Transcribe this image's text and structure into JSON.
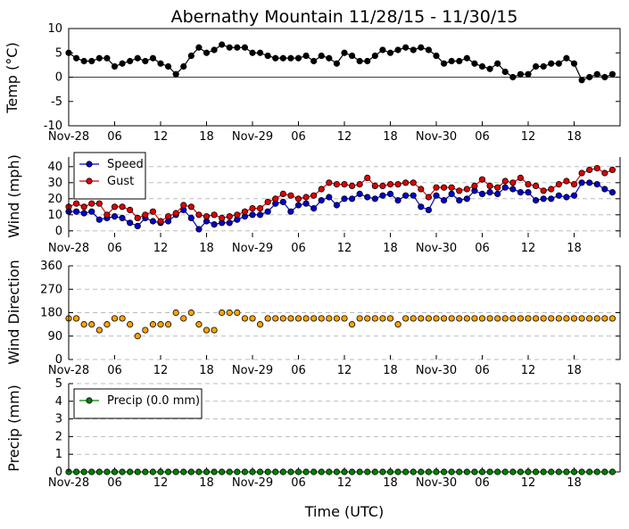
{
  "figure": {
    "title": "Abernathy Mountain 11/28/15 - 11/30/15",
    "xlabel": "Time (UTC)",
    "x_tick_labels": [
      "Nov-28",
      "06",
      "12",
      "18",
      "Nov-29",
      "06",
      "12",
      "18",
      "Nov-30",
      "06",
      "12",
      "18"
    ]
  },
  "chart_data": [
    {
      "type": "line",
      "name": "temperature",
      "ylabel": "Temp (°C)",
      "ylim": [
        -10,
        10
      ],
      "yticks": [
        -10,
        -5,
        0,
        5,
        10
      ],
      "xlim": [
        0,
        72
      ],
      "grid": false,
      "zero_line": true,
      "series": [
        {
          "color": "#000000",
          "x": [
            0,
            1,
            2,
            3,
            4,
            5,
            6,
            7,
            8,
            9,
            10,
            11,
            12,
            13,
            14,
            15,
            16,
            17,
            18,
            19,
            20,
            21,
            22,
            23,
            24,
            25,
            26,
            27,
            28,
            29,
            30,
            31,
            32,
            33,
            34,
            35,
            36,
            37,
            38,
            39,
            40,
            41,
            42,
            43,
            44,
            45,
            46,
            47,
            48,
            49,
            50,
            51,
            52,
            53,
            54,
            55,
            56,
            57,
            58,
            59,
            60,
            61,
            62,
            63,
            64,
            65,
            66,
            67,
            68,
            69,
            70,
            71
          ],
          "y": [
            5,
            3.9,
            3.3,
            3.3,
            3.9,
            3.9,
            2.2,
            2.8,
            3.3,
            3.9,
            3.3,
            3.9,
            2.8,
            2.2,
            0.6,
            2.2,
            4.4,
            6.1,
            5,
            5.6,
            6.7,
            6.1,
            6.1,
            6.1,
            5,
            5,
            4.4,
            3.9,
            3.9,
            3.9,
            3.9,
            4.4,
            3.3,
            4.4,
            3.9,
            2.8,
            5,
            4.4,
            3.3,
            3.3,
            4.4,
            5.6,
            5,
            5.6,
            6.1,
            5.6,
            6.1,
            5.6,
            4.4,
            2.8,
            3.3,
            3.3,
            3.9,
            2.8,
            2.2,
            1.7,
            2.8,
            1.1,
            0,
            0.6,
            0.6,
            2.2,
            2.2,
            2.8,
            2.8,
            3.9,
            2.8,
            -0.6,
            0,
            0.6,
            0,
            0.6
          ]
        }
      ]
    },
    {
      "type": "line",
      "name": "wind",
      "ylabel": "Wind (mph)",
      "ylim": [
        -4,
        46
      ],
      "yticks": [
        0,
        10,
        20,
        30,
        40
      ],
      "xlim": [
        0,
        72
      ],
      "grid": true,
      "legend": "top-left",
      "series": [
        {
          "name": "Speed",
          "color": "#0000cc",
          "x": [
            0,
            1,
            2,
            3,
            4,
            5,
            6,
            7,
            8,
            9,
            10,
            11,
            12,
            13,
            14,
            15,
            16,
            17,
            18,
            19,
            20,
            21,
            22,
            23,
            24,
            25,
            26,
            27,
            28,
            29,
            30,
            31,
            32,
            33,
            34,
            35,
            36,
            37,
            38,
            39,
            40,
            41,
            42,
            43,
            44,
            45,
            46,
            47,
            48,
            49,
            50,
            51,
            52,
            53,
            54,
            55,
            56,
            57,
            58,
            59,
            60,
            61,
            62,
            63,
            64,
            65,
            66,
            67,
            68,
            69,
            70,
            71
          ],
          "y": [
            12,
            12,
            11,
            12,
            7,
            8,
            9,
            8,
            5,
            3,
            8,
            6,
            5,
            6,
            10,
            13,
            8,
            1,
            6,
            4,
            5,
            5,
            7,
            9,
            10,
            10,
            12,
            17,
            18,
            12,
            16,
            17,
            14,
            19,
            21,
            16,
            20,
            20,
            23,
            21,
            20,
            22,
            23,
            19,
            22,
            22,
            15,
            13,
            22,
            19,
            23,
            19,
            20,
            25,
            23,
            24,
            23,
            27,
            26,
            24,
            24,
            19,
            20,
            20,
            22,
            21,
            22,
            30,
            30,
            29,
            26,
            24
          ]
        },
        {
          "name": "Gust",
          "color": "#dd0000",
          "x": [
            0,
            1,
            2,
            3,
            4,
            5,
            6,
            7,
            8,
            9,
            10,
            11,
            12,
            13,
            14,
            15,
            16,
            17,
            18,
            19,
            20,
            21,
            22,
            23,
            24,
            25,
            26,
            27,
            28,
            29,
            30,
            31,
            32,
            33,
            34,
            35,
            36,
            37,
            38,
            39,
            40,
            41,
            42,
            43,
            44,
            45,
            46,
            47,
            48,
            49,
            50,
            51,
            52,
            53,
            54,
            55,
            56,
            57,
            58,
            59,
            60,
            61,
            62,
            63,
            64,
            65,
            66,
            67,
            68,
            69,
            70,
            71
          ],
          "y": [
            15,
            17,
            15,
            17,
            17,
            10,
            15,
            15,
            13,
            8,
            10,
            12,
            6,
            9,
            11,
            16,
            15,
            10,
            9,
            10,
            8,
            9,
            10,
            12,
            14,
            14,
            18,
            20,
            23,
            22,
            20,
            21,
            22,
            26,
            30,
            29,
            29,
            28,
            29,
            33,
            28,
            28,
            29,
            29,
            30,
            30,
            26,
            21,
            27,
            27,
            27,
            25,
            26,
            28,
            32,
            28,
            27,
            31,
            30,
            33,
            29,
            28,
            25,
            26,
            29,
            31,
            29,
            36,
            38,
            39,
            36,
            38
          ]
        }
      ]
    },
    {
      "type": "scatter",
      "name": "wind_direction",
      "ylabel": "Wind Direction",
      "ylim": [
        0,
        360
      ],
      "yticks": [
        0,
        90,
        180,
        270,
        360
      ],
      "xlim": [
        0,
        72
      ],
      "grid": true,
      "series": [
        {
          "color": "#ffa500",
          "x": [
            0,
            1,
            2,
            3,
            4,
            5,
            6,
            7,
            8,
            9,
            10,
            11,
            12,
            13,
            14,
            15,
            16,
            17,
            18,
            19,
            20,
            21,
            22,
            23,
            24,
            25,
            26,
            27,
            28,
            29,
            30,
            31,
            32,
            33,
            34,
            35,
            36,
            37,
            38,
            39,
            40,
            41,
            42,
            43,
            44,
            45,
            46,
            47,
            48,
            49,
            50,
            51,
            52,
            53,
            54,
            55,
            56,
            57,
            58,
            59,
            60,
            61,
            62,
            63,
            64,
            65,
            66,
            67,
            68,
            69,
            70,
            71
          ],
          "y": [
            158,
            158,
            135,
            135,
            113,
            135,
            158,
            158,
            135,
            90,
            113,
            135,
            135,
            135,
            180,
            158,
            180,
            135,
            113,
            113,
            180,
            180,
            180,
            158,
            158,
            135,
            158,
            158,
            158,
            158,
            158,
            158,
            158,
            158,
            158,
            158,
            158,
            135,
            158,
            158,
            158,
            158,
            158,
            135,
            158,
            158,
            158,
            158,
            158,
            158,
            158,
            158,
            158,
            158,
            158,
            158,
            158,
            158,
            158,
            158,
            158,
            158,
            158,
            158,
            158,
            158,
            158,
            158,
            158,
            158,
            158,
            158
          ]
        }
      ]
    },
    {
      "type": "line",
      "name": "precipitation",
      "ylabel": "Precip (mm)",
      "ylim": [
        0,
        5
      ],
      "yticks": [
        0,
        1,
        2,
        3,
        4,
        5
      ],
      "xlim": [
        0,
        72
      ],
      "grid": true,
      "legend": "top-left",
      "series": [
        {
          "name": "Precip (0.0 mm)",
          "color": "#008000",
          "x": [
            0,
            1,
            2,
            3,
            4,
            5,
            6,
            7,
            8,
            9,
            10,
            11,
            12,
            13,
            14,
            15,
            16,
            17,
            18,
            19,
            20,
            21,
            22,
            23,
            24,
            25,
            26,
            27,
            28,
            29,
            30,
            31,
            32,
            33,
            34,
            35,
            36,
            37,
            38,
            39,
            40,
            41,
            42,
            43,
            44,
            45,
            46,
            47,
            48,
            49,
            50,
            51,
            52,
            53,
            54,
            55,
            56,
            57,
            58,
            59,
            60,
            61,
            62,
            63,
            64,
            65,
            66,
            67,
            68,
            69,
            70,
            71
          ],
          "y": [
            0,
            0,
            0,
            0,
            0,
            0,
            0,
            0,
            0,
            0,
            0,
            0,
            0,
            0,
            0,
            0,
            0,
            0,
            0,
            0,
            0,
            0,
            0,
            0,
            0,
            0,
            0,
            0,
            0,
            0,
            0,
            0,
            0,
            0,
            0,
            0,
            0,
            0,
            0,
            0,
            0,
            0,
            0,
            0,
            0,
            0,
            0,
            0,
            0,
            0,
            0,
            0,
            0,
            0,
            0,
            0,
            0,
            0,
            0,
            0,
            0,
            0,
            0,
            0,
            0,
            0,
            0,
            0,
            0,
            0,
            0,
            0
          ]
        }
      ]
    }
  ]
}
